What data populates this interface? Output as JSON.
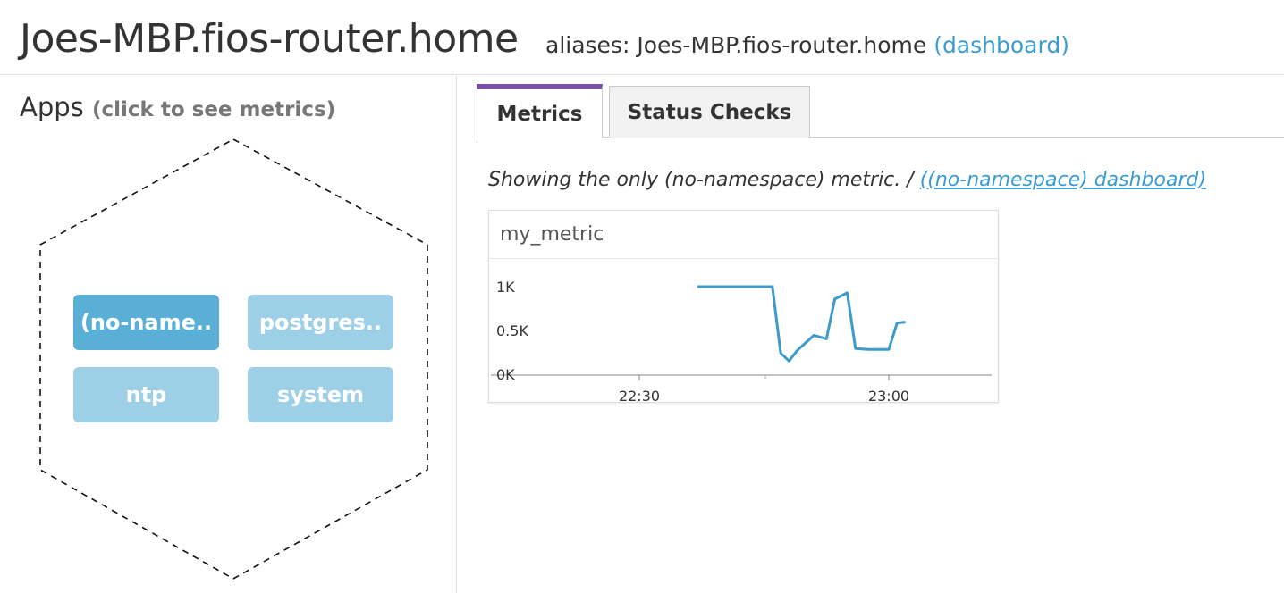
{
  "header": {
    "host": "Joes-MBP.fios-router.home",
    "aliases_label": "aliases:",
    "aliases_value": "Joes-MBP.fios-router.home",
    "dashboard_link": "(dashboard)"
  },
  "apps": {
    "heading": "Apps",
    "hint": "(click to see metrics)",
    "items": [
      {
        "label": "(no-name..",
        "active": true
      },
      {
        "label": "postgres..",
        "active": false
      },
      {
        "label": "ntp",
        "active": false
      },
      {
        "label": "system",
        "active": false
      }
    ]
  },
  "tabs": [
    {
      "label": "Metrics",
      "selected": true
    },
    {
      "label": "Status Checks",
      "selected": false
    }
  ],
  "metrics_panel": {
    "showing_text": "Showing the only (no-namespace) metric. /",
    "dashboard_link": "((no-namespace) dashboard)"
  },
  "graph": {
    "title": "my_metric",
    "line_color": "#3d9bcc"
  },
  "chart_data": {
    "type": "line",
    "title": "my_metric",
    "xlabel": "",
    "ylabel": "",
    "y_ticks": [
      "1K",
      "0.5K",
      "0K"
    ],
    "x_ticks": [
      "22:30",
      "23:00"
    ],
    "ylim": [
      0,
      1000
    ],
    "xlim_minutes": [
      22.5,
      34.5
    ],
    "series": [
      {
        "x_minutes": [
          37.0,
          46.0,
          47.0,
          48.0,
          49.0,
          51.0,
          52.5,
          53.5,
          55.0,
          56.0,
          57.5,
          58.5,
          60.0,
          61.0,
          62.0
        ],
        "values": [
          1000,
          1000,
          250,
          160,
          280,
          450,
          410,
          860,
          930,
          300,
          290,
          290,
          290,
          590,
          600
        ]
      }
    ]
  }
}
